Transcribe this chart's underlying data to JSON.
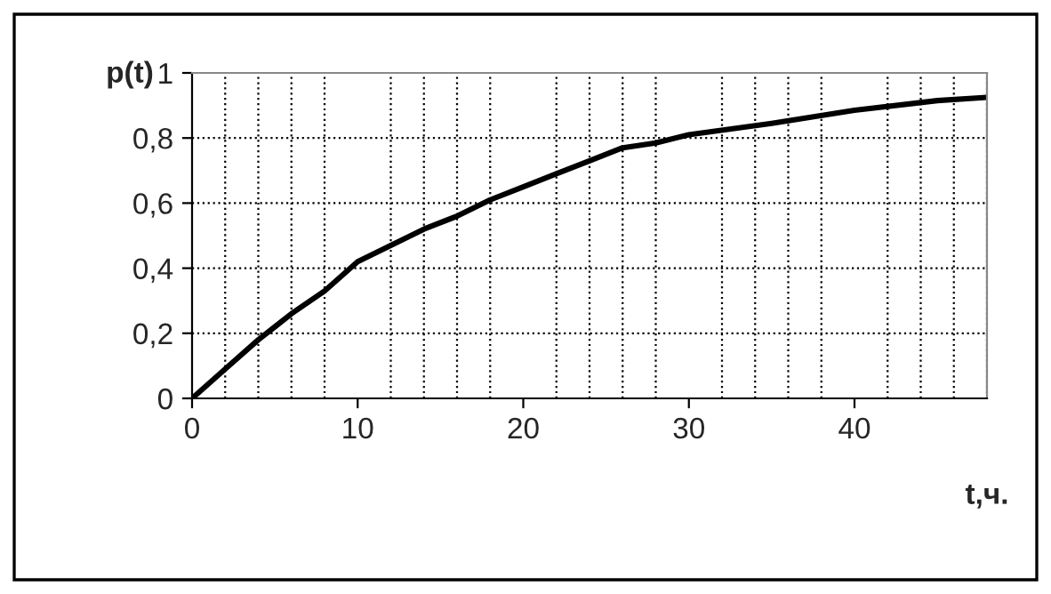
{
  "chart_data": {
    "type": "line",
    "xlabel": "t,ч.",
    "ylabel": "p(t)",
    "x": [
      0,
      2,
      4,
      5,
      6,
      8,
      10,
      12,
      14,
      16,
      18,
      20,
      22,
      24,
      26,
      28,
      30,
      35,
      40,
      45,
      48
    ],
    "series": [
      {
        "color": "#000000",
        "values": [
          0,
          0.09,
          0.18,
          0.22,
          0.26,
          0.33,
          0.42,
          0.47,
          0.52,
          0.56,
          0.61,
          0.65,
          0.69,
          0.73,
          0.77,
          0.785,
          0.81,
          0.845,
          0.885,
          0.915,
          0.925
        ]
      }
    ],
    "xlim": [
      0,
      48
    ],
    "xticks": [
      0,
      10,
      20,
      30,
      40
    ],
    "ylim": [
      0,
      1
    ],
    "yticks": [
      0,
      {
        "value": 0.2,
        "label": "0,2"
      },
      {
        "value": 0.4,
        "label": "0,4"
      },
      {
        "value": 0.6,
        "label": "0,6"
      },
      {
        "value": 0.8,
        "label": "0,8"
      },
      1
    ],
    "grid": true,
    "legend": false,
    "marker": "none",
    "line_style": "solid"
  }
}
